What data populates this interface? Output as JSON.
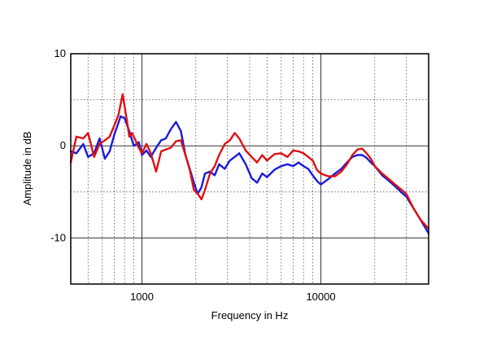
{
  "chart_data": {
    "type": "line",
    "title": "",
    "xlabel": "Frequency in Hz",
    "ylabel": "Amplitude in dB",
    "x_scale": "log",
    "xlim": [
      400,
      40000
    ],
    "ylim": [
      -15,
      10
    ],
    "grid": true,
    "x_tick_labels": [
      {
        "value": 1000,
        "label": "1000"
      },
      {
        "value": 10000,
        "label": "10000"
      }
    ],
    "y_tick_labels": [
      {
        "value": 10,
        "label": "10"
      },
      {
        "value": 0,
        "label": "0"
      },
      {
        "value": -10,
        "label": "-10"
      }
    ],
    "colors": {
      "blue": "#1a1adc",
      "red": "#e01010",
      "grid": "#555555"
    },
    "series": [
      {
        "color": "blue",
        "x": [
          400,
          430,
          470,
          500,
          540,
          580,
          620,
          660,
          700,
          760,
          800,
          850,
          900,
          960,
          1000,
          1060,
          1120,
          1200,
          1280,
          1360,
          1450,
          1550,
          1650,
          1750,
          1850,
          1950,
          2050,
          2150,
          2250,
          2400,
          2550,
          2700,
          2900,
          3100,
          3300,
          3500,
          3800,
          4100,
          4400,
          4700,
          5000,
          5500,
          6000,
          6500,
          7000,
          7500,
          8000,
          8500,
          9000,
          9500,
          10000,
          11000,
          12000,
          13000,
          14000,
          15000,
          16000,
          17000,
          18000,
          19000,
          20000,
          22000,
          24000,
          26000,
          28000,
          30000,
          33000,
          36000,
          40000
        ],
        "y": [
          -0.6,
          -0.8,
          0.2,
          -1.2,
          -0.8,
          0.8,
          -1.4,
          -0.6,
          1.2,
          3.2,
          3.0,
          1.6,
          0.0,
          0.4,
          -1.0,
          -0.5,
          -1.2,
          -0.2,
          0.6,
          0.8,
          1.8,
          2.6,
          1.6,
          -1.0,
          -2.5,
          -4.0,
          -5.2,
          -4.5,
          -3.0,
          -2.8,
          -3.2,
          -2.0,
          -2.5,
          -1.6,
          -1.2,
          -0.8,
          -2.0,
          -3.5,
          -4.0,
          -3.0,
          -3.4,
          -2.6,
          -2.2,
          -2.0,
          -2.2,
          -1.8,
          -2.2,
          -2.5,
          -3.2,
          -3.8,
          -4.2,
          -3.6,
          -3.0,
          -2.5,
          -1.8,
          -1.2,
          -1.0,
          -1.0,
          -1.3,
          -1.8,
          -2.2,
          -3.2,
          -3.8,
          -4.4,
          -5.0,
          -5.5,
          -6.8,
          -8.0,
          -9.5
        ]
      },
      {
        "color": "red",
        "x": [
          400,
          430,
          470,
          500,
          540,
          580,
          620,
          660,
          700,
          740,
          780,
          820,
          850,
          880,
          920,
          960,
          1000,
          1060,
          1120,
          1200,
          1280,
          1360,
          1450,
          1550,
          1650,
          1750,
          1850,
          1950,
          2050,
          2150,
          2250,
          2400,
          2550,
          2700,
          2900,
          3100,
          3300,
          3500,
          3800,
          4100,
          4400,
          4700,
          5000,
          5500,
          6000,
          6500,
          7000,
          7500,
          8000,
          8500,
          9000,
          9500,
          10000,
          11000,
          12000,
          13000,
          14000,
          15000,
          16000,
          17000,
          18000,
          19000,
          20000,
          22000,
          24000,
          26000,
          28000,
          30000,
          33000,
          36000,
          40000
        ],
        "y": [
          -1.8,
          1.0,
          0.8,
          1.4,
          -1.2,
          0.2,
          0.6,
          1.0,
          2.2,
          3.4,
          5.6,
          3.0,
          1.0,
          1.4,
          0.6,
          -0.2,
          -0.8,
          0.2,
          -0.8,
          -2.8,
          -0.6,
          -0.4,
          -0.2,
          0.5,
          0.6,
          -1.0,
          -2.6,
          -4.8,
          -5.2,
          -5.8,
          -4.8,
          -3.0,
          -2.2,
          -1.0,
          0.2,
          0.6,
          1.4,
          0.8,
          -0.5,
          -1.2,
          -1.8,
          -1.0,
          -1.6,
          -0.9,
          -0.8,
          -1.2,
          -0.5,
          -0.6,
          -0.8,
          -1.2,
          -1.6,
          -2.6,
          -3.0,
          -3.3,
          -3.3,
          -2.8,
          -2.0,
          -1.0,
          -0.4,
          -0.3,
          -0.8,
          -1.4,
          -2.2,
          -3.0,
          -3.6,
          -4.2,
          -4.7,
          -5.2,
          -6.8,
          -8.0,
          -9.0
        ]
      }
    ]
  }
}
